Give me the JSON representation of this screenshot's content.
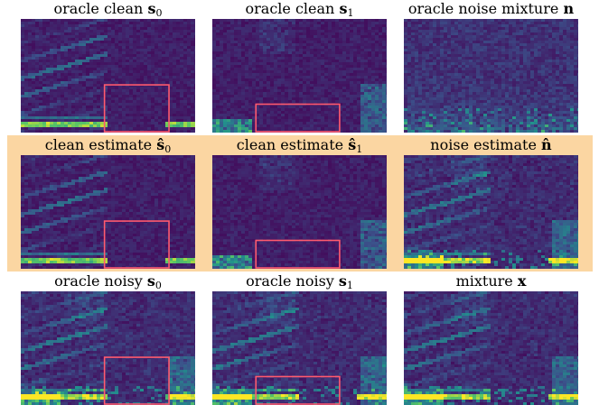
{
  "panels": [
    {
      "id": "p00",
      "title": {
        "text": "oracle clean ",
        "symbol": "s",
        "hat": false,
        "sub": "0"
      },
      "seed": 11,
      "kind": "voiced",
      "box": [
        0.48,
        0.58,
        0.85,
        1.0
      ]
    },
    {
      "id": "p01",
      "title": {
        "text": "oracle clean ",
        "symbol": "s",
        "hat": false,
        "sub": "1"
      },
      "seed": 23,
      "kind": "sparse",
      "box": [
        0.25,
        0.75,
        0.73,
        1.0
      ]
    },
    {
      "id": "p02",
      "title": {
        "text": "oracle noise mixture ",
        "symbol": "n",
        "hat": false,
        "sub": ""
      },
      "seed": 37,
      "kind": "noise",
      "box": null
    },
    {
      "id": "p10",
      "title": {
        "text": "clean estimate ",
        "symbol": "s",
        "hat": true,
        "sub": "0"
      },
      "seed": 41,
      "kind": "voiced",
      "box": [
        0.48,
        0.58,
        0.85,
        1.0
      ]
    },
    {
      "id": "p11",
      "title": {
        "text": "clean estimate ",
        "symbol": "s",
        "hat": true,
        "sub": "1"
      },
      "seed": 53,
      "kind": "sparse",
      "box": [
        0.25,
        0.75,
        0.73,
        1.0
      ]
    },
    {
      "id": "p12",
      "title": {
        "text": "noise estimate ",
        "symbol": "n",
        "hat": true,
        "sub": ""
      },
      "seed": 67,
      "kind": "mix",
      "box": null
    },
    {
      "id": "p20",
      "title": {
        "text": "oracle noisy ",
        "symbol": "s",
        "hat": false,
        "sub": "0"
      },
      "seed": 71,
      "kind": "mix",
      "box": [
        0.48,
        0.58,
        0.85,
        1.0
      ]
    },
    {
      "id": "p21",
      "title": {
        "text": "oracle noisy ",
        "symbol": "s",
        "hat": false,
        "sub": "1"
      },
      "seed": 83,
      "kind": "mix",
      "box": [
        0.25,
        0.75,
        0.73,
        1.0
      ]
    },
    {
      "id": "p22",
      "title": {
        "text": "mixture ",
        "symbol": "x",
        "hat": false,
        "sub": ""
      },
      "seed": 97,
      "kind": "mix",
      "box": null
    }
  ],
  "colors": {
    "colormap": [
      "#440154",
      "#3b528b",
      "#21918c",
      "#5ec962",
      "#fde725"
    ],
    "box": "#ff5a6e",
    "highlight": "#fbd6a2"
  }
}
